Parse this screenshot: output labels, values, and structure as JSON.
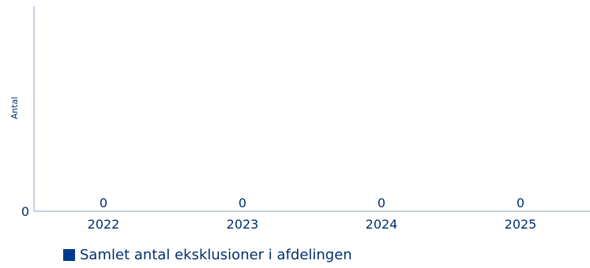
{
  "chart_data": {
    "type": "bar",
    "categories": [
      "2022",
      "2023",
      "2024",
      "2025"
    ],
    "series": [
      {
        "name": "Samlet antal eksklusioner i afdelingen",
        "values": [
          0,
          0,
          0,
          0
        ],
        "color": "#003a8c"
      }
    ],
    "ylabel": "Antal",
    "y_ticks": [
      "0"
    ],
    "ylim": [
      0,
      1
    ],
    "legend_position": "bottom-left",
    "grid": false,
    "text_color": "#002e6d",
    "axis_color": "#8aa0bd"
  }
}
